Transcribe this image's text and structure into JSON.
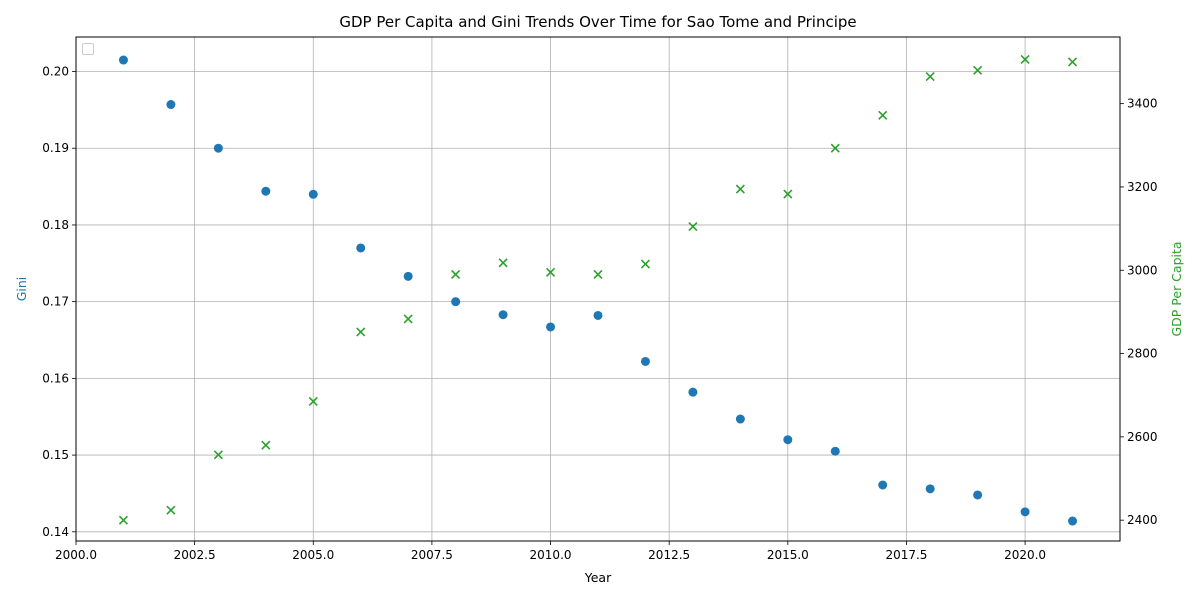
{
  "chart_data": {
    "type": "scatter",
    "title": "GDP Per Capita and Gini Trends Over Time for Sao Tome and Principe",
    "xlabel": "Year",
    "ylabel_left": "Gini",
    "ylabel_right": "GDP Per Capita",
    "xlim": [
      2000,
      2022
    ],
    "ylim_left": [
      0.1388,
      0.2045
    ],
    "ylim_right": [
      2350,
      3560
    ],
    "x_ticks": [
      2000.0,
      2002.5,
      2005.0,
      2007.5,
      2010.0,
      2012.5,
      2015.0,
      2017.5,
      2020.0
    ],
    "x_tick_labels": [
      "2000.0",
      "2002.5",
      "2005.0",
      "2007.5",
      "2010.0",
      "2012.5",
      "2015.0",
      "2017.5",
      "2020.0"
    ],
    "y_left_ticks": [
      0.14,
      0.15,
      0.16,
      0.17,
      0.18,
      0.19,
      0.2
    ],
    "y_left_tick_labels": [
      "0.14",
      "0.15",
      "0.16",
      "0.17",
      "0.18",
      "0.19",
      "0.20"
    ],
    "y_right_ticks": [
      2400,
      2600,
      2800,
      3000,
      3200,
      3400
    ],
    "y_right_tick_labels": [
      "2400",
      "2600",
      "2800",
      "3000",
      "3200",
      "3400"
    ],
    "grid": true,
    "legend_placement": "top-left",
    "series": [
      {
        "axis": "left",
        "marker": "circle",
        "color": "#1f77b4",
        "x": [
          2001,
          2002,
          2003,
          2004,
          2005,
          2006,
          2007,
          2008,
          2009,
          2010,
          2011,
          2012,
          2013,
          2014,
          2015,
          2016,
          2017,
          2018,
          2019,
          2020,
          2021
        ],
        "y": [
          0.2015,
          0.1957,
          0.19,
          0.1844,
          0.184,
          0.177,
          0.1733,
          0.17,
          0.1683,
          0.1667,
          0.1682,
          0.1622,
          0.1582,
          0.1547,
          0.152,
          0.1505,
          0.1461,
          0.1456,
          0.1448,
          0.1426,
          0.1414
        ]
      },
      {
        "axis": "right",
        "marker": "x",
        "color": "#2ca02c",
        "x": [
          2001,
          2002,
          2003,
          2004,
          2005,
          2006,
          2007,
          2008,
          2009,
          2010,
          2011,
          2012,
          2013,
          2014,
          2015,
          2016,
          2017,
          2018,
          2019,
          2020,
          2021
        ],
        "y": [
          2400,
          2424,
          2557,
          2580,
          2685,
          2852,
          2883,
          2990,
          3018,
          2995,
          2990,
          3015,
          3105,
          3195,
          3183,
          3293,
          3372,
          3465,
          3480,
          3506,
          3500
        ]
      }
    ]
  },
  "colors": {
    "left_axis_label": "#1f77b4",
    "right_axis_label": "#2ca02c",
    "grid": "#b0b0b0"
  }
}
